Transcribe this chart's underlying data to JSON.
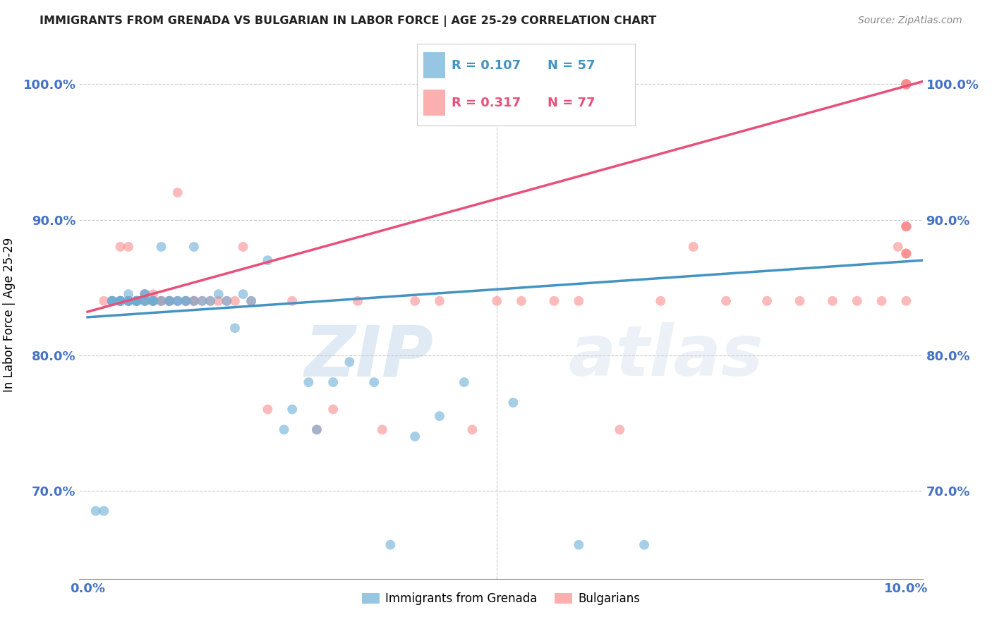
{
  "title": "IMMIGRANTS FROM GRENADA VS BULGARIAN IN LABOR FORCE | AGE 25-29 CORRELATION CHART",
  "source": "Source: ZipAtlas.com",
  "ylabel": "In Labor Force | Age 25-29",
  "ytick_labels": [
    "70.0%",
    "80.0%",
    "90.0%",
    "100.0%"
  ],
  "ytick_values": [
    0.7,
    0.8,
    0.9,
    1.0
  ],
  "xlim": [
    -0.001,
    0.102
  ],
  "ylim": [
    0.635,
    1.025
  ],
  "grenada_R": 0.107,
  "grenada_N": 57,
  "bulgarian_R": 0.317,
  "bulgarian_N": 77,
  "grenada_color": "#6baed6",
  "bulgarian_color": "#fc8d8d",
  "grenada_line_color": "#4393c3",
  "bulgarian_line_color": "#e8507a",
  "legend_label_grenada": "Immigrants from Grenada",
  "legend_label_bulgarian": "Bulgarians",
  "watermark_zip": "ZIP",
  "watermark_atlas": "atlas",
  "background_color": "#ffffff",
  "grid_color": "#cccccc",
  "axis_label_color": "#4472c4",
  "title_color": "#222222",
  "grenada_points_x": [
    0.001,
    0.002,
    0.003,
    0.003,
    0.003,
    0.004,
    0.004,
    0.004,
    0.004,
    0.005,
    0.005,
    0.005,
    0.005,
    0.006,
    0.006,
    0.006,
    0.006,
    0.006,
    0.007,
    0.007,
    0.007,
    0.007,
    0.008,
    0.008,
    0.008,
    0.009,
    0.009,
    0.01,
    0.01,
    0.011,
    0.011,
    0.012,
    0.012,
    0.013,
    0.013,
    0.014,
    0.015,
    0.016,
    0.017,
    0.018,
    0.019,
    0.02,
    0.022,
    0.024,
    0.025,
    0.027,
    0.028,
    0.03,
    0.032,
    0.035,
    0.037,
    0.04,
    0.043,
    0.046,
    0.052,
    0.06,
    0.068
  ],
  "grenada_points_y": [
    0.685,
    0.685,
    0.84,
    0.84,
    0.84,
    0.84,
    0.84,
    0.84,
    0.84,
    0.845,
    0.84,
    0.84,
    0.84,
    0.84,
    0.84,
    0.84,
    0.84,
    0.84,
    0.845,
    0.84,
    0.845,
    0.84,
    0.84,
    0.84,
    0.84,
    0.88,
    0.84,
    0.84,
    0.84,
    0.84,
    0.84,
    0.84,
    0.84,
    0.88,
    0.84,
    0.84,
    0.84,
    0.845,
    0.84,
    0.82,
    0.845,
    0.84,
    0.87,
    0.745,
    0.76,
    0.78,
    0.745,
    0.78,
    0.795,
    0.78,
    0.66,
    0.74,
    0.755,
    0.78,
    0.765,
    0.66,
    0.66
  ],
  "bulgarian_points_x": [
    0.002,
    0.003,
    0.003,
    0.003,
    0.004,
    0.004,
    0.004,
    0.004,
    0.005,
    0.005,
    0.005,
    0.006,
    0.006,
    0.006,
    0.006,
    0.007,
    0.007,
    0.007,
    0.008,
    0.008,
    0.008,
    0.009,
    0.009,
    0.01,
    0.01,
    0.01,
    0.011,
    0.011,
    0.012,
    0.012,
    0.013,
    0.013,
    0.014,
    0.015,
    0.016,
    0.017,
    0.018,
    0.019,
    0.02,
    0.022,
    0.025,
    0.028,
    0.03,
    0.033,
    0.036,
    0.04,
    0.043,
    0.047,
    0.05,
    0.053,
    0.057,
    0.06,
    0.065,
    0.07,
    0.074,
    0.078,
    0.083,
    0.087,
    0.091,
    0.094,
    0.097,
    0.099,
    0.1,
    0.1,
    0.1,
    0.1,
    0.1,
    0.1,
    0.1,
    0.1,
    0.1,
    0.1,
    0.1,
    0.1,
    0.1,
    0.1,
    0.1
  ],
  "bulgarian_points_y": [
    0.84,
    0.84,
    0.84,
    0.84,
    0.84,
    0.84,
    0.84,
    0.88,
    0.84,
    0.84,
    0.88,
    0.84,
    0.84,
    0.84,
    0.84,
    0.845,
    0.84,
    0.84,
    0.845,
    0.84,
    0.84,
    0.84,
    0.84,
    0.84,
    0.84,
    0.84,
    0.84,
    0.92,
    0.84,
    0.84,
    0.84,
    0.84,
    0.84,
    0.84,
    0.84,
    0.84,
    0.84,
    0.88,
    0.84,
    0.76,
    0.84,
    0.745,
    0.76,
    0.84,
    0.745,
    0.84,
    0.84,
    0.745,
    0.84,
    0.84,
    0.84,
    0.84,
    0.745,
    0.84,
    0.88,
    0.84,
    0.84,
    0.84,
    0.84,
    0.84,
    0.84,
    0.88,
    1.0,
    1.0,
    1.0,
    1.0,
    1.0,
    1.0,
    1.0,
    0.895,
    0.895,
    0.875,
    0.84,
    0.875,
    0.875,
    0.895,
    0.895
  ],
  "grenada_line_x0": 0.0,
  "grenada_line_x1": 0.102,
  "grenada_line_y0": 0.828,
  "grenada_line_y1": 0.87,
  "bulgarian_line_x0": 0.0,
  "bulgarian_line_x1": 0.102,
  "bulgarian_line_y0": 0.832,
  "bulgarian_line_y1": 1.002
}
